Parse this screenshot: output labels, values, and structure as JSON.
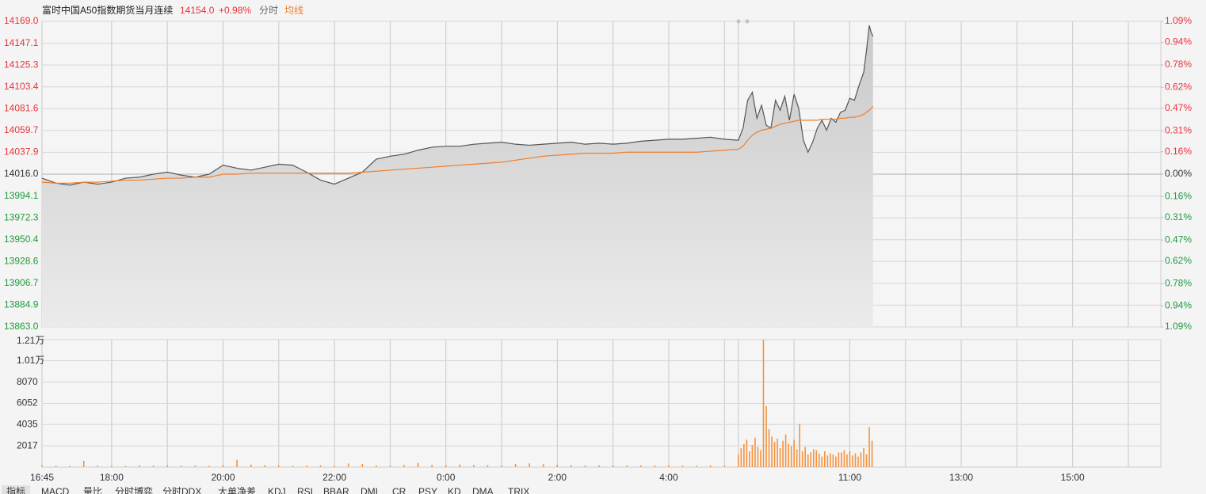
{
  "chart_data": [
    {
      "type": "line",
      "title": "富时中国A50指数期货当月连续",
      "last": "14154.0",
      "change": "+0.98%",
      "mode": "分时",
      "x": [
        0,
        15,
        30,
        45,
        60,
        75,
        90,
        105,
        120,
        135,
        150,
        165,
        180,
        195,
        210,
        225,
        240,
        255,
        270,
        285,
        300,
        315,
        330,
        345,
        360,
        375,
        390,
        405,
        420,
        435,
        450,
        465,
        480,
        495,
        510,
        525,
        540,
        555,
        570,
        585,
        600,
        615,
        630,
        645,
        660,
        675,
        690,
        705,
        720,
        735,
        750,
        755,
        760,
        765,
        770,
        775,
        780,
        785,
        790,
        795,
        800,
        805,
        810,
        815,
        820,
        825,
        830,
        835,
        840,
        845,
        850,
        855,
        860,
        865,
        870,
        875,
        880,
        885,
        888,
        891,
        893,
        895
      ],
      "series": [
        {
          "color": "#555555",
          "values": [
            14012,
            14007,
            14005,
            14008,
            14006,
            14008,
            14012,
            14013,
            14016,
            14018,
            14015,
            14013,
            14016,
            14025,
            14022,
            14020,
            14023,
            14026,
            14025,
            14018,
            14010,
            14006,
            14012,
            14018,
            14031,
            14034,
            14036,
            14040,
            14043,
            14044,
            14044,
            14046,
            14047,
            14048,
            14046,
            14045,
            14046,
            14047,
            14048,
            14046,
            14047,
            14046,
            14047,
            14049,
            14050,
            14051,
            14051,
            14052,
            14053,
            14051,
            14050,
            14062,
            14090,
            14098,
            14072,
            14085,
            14065,
            14062,
            14090,
            14080,
            14094,
            14070,
            14096,
            14082,
            14050,
            14038,
            14048,
            14062,
            14070,
            14060,
            14072,
            14068,
            14078,
            14080,
            14092,
            14090,
            14105,
            14118,
            14140,
            14165,
            14158,
            14154
          ]
        },
        {
          "name": "均线",
          "color": "#f07f2a",
          "values": [
            14008,
            14007,
            14007,
            14008,
            14008,
            14009,
            14010,
            14010,
            14011,
            14012,
            14012,
            14013,
            14013,
            14016,
            14016,
            14017,
            14017,
            14017,
            14017,
            14017,
            14017,
            14017,
            14017,
            14018,
            14019,
            14020,
            14021,
            14022,
            14023,
            14024,
            14025,
            14026,
            14027,
            14028,
            14030,
            14032,
            14034,
            14035,
            14036,
            14037,
            14037,
            14037,
            14038,
            14038,
            14038,
            14038,
            14038,
            14038,
            14039,
            14040,
            14041,
            14044,
            14050,
            14055,
            14058,
            14060,
            14061,
            14062,
            14064,
            14066,
            14067,
            14068,
            14069,
            14070,
            14070,
            14070,
            14070,
            14070,
            14071,
            14071,
            14071,
            14071,
            14072,
            14072,
            14073,
            14073,
            14074,
            14076,
            14078,
            14080,
            14082,
            14084
          ]
        }
      ],
      "xlim": [
        0,
        1205
      ],
      "ylim": [
        13863,
        14169
      ],
      "yticks": [
        {
          "value": 14169,
          "label": "14169.0"
        },
        14147.1,
        14125.3,
        14103.4,
        14081.6,
        14059.7,
        14037.9,
        {
          "value": 14016,
          "label": "14016.0"
        },
        13994.1,
        13972.3,
        13950.4,
        13928.6,
        13906.7,
        13884.9,
        {
          "value": 13863,
          "label": "13863.0"
        }
      ],
      "y2lim": [
        -1.09,
        1.09
      ],
      "y2ticks": [
        {
          "value": 1.09,
          "label": "1.09%"
        },
        {
          "value": 0.94,
          "label": "0.94%"
        },
        {
          "value": 0.78,
          "label": "0.78%"
        },
        {
          "value": 0.62,
          "label": "0.62%"
        },
        {
          "value": 0.47,
          "label": "0.47%"
        },
        {
          "value": 0.31,
          "label": "0.31%"
        },
        {
          "value": 0.16,
          "label": "0.16%"
        },
        {
          "value": 0,
          "label": "0.00%"
        },
        {
          "value": -0.16,
          "label": "0.16%"
        },
        {
          "value": -0.31,
          "label": "0.31%"
        },
        {
          "value": -0.47,
          "label": "0.47%"
        },
        {
          "value": -0.62,
          "label": "0.62%"
        },
        {
          "value": -0.78,
          "label": "0.78%"
        },
        {
          "value": -0.94,
          "label": "0.94%"
        },
        {
          "value": -1.09,
          "label": "1.09%"
        }
      ],
      "up_color": "#e8333a",
      "down_color": "#1f9a3c",
      "grid": true
    },
    {
      "type": "bar",
      "color": "#f5923e",
      "x": [
        0,
        15,
        30,
        45,
        60,
        75,
        90,
        105,
        120,
        135,
        150,
        165,
        180,
        195,
        210,
        225,
        240,
        255,
        270,
        285,
        300,
        315,
        330,
        345,
        360,
        375,
        390,
        405,
        420,
        435,
        450,
        465,
        480,
        495,
        510,
        525,
        540,
        555,
        570,
        585,
        600,
        615,
        630,
        645,
        660,
        675,
        690,
        705,
        720,
        735,
        750,
        753,
        756,
        759,
        762,
        765,
        768,
        771,
        774,
        777,
        780,
        783,
        786,
        789,
        792,
        795,
        798,
        801,
        804,
        807,
        810,
        813,
        816,
        819,
        822,
        825,
        828,
        831,
        834,
        837,
        840,
        843,
        846,
        849,
        852,
        855,
        858,
        861,
        864,
        867,
        870,
        873,
        876,
        879,
        882,
        885,
        888,
        891,
        894
      ],
      "values": [
        150,
        120,
        100,
        600,
        130,
        120,
        110,
        150,
        140,
        160,
        130,
        140,
        120,
        200,
        700,
        250,
        180,
        150,
        120,
        140,
        160,
        100,
        350,
        300,
        150,
        120,
        200,
        400,
        220,
        180,
        250,
        200,
        180,
        160,
        300,
        350,
        280,
        220,
        180,
        150,
        170,
        160,
        150,
        140,
        150,
        170,
        130,
        120,
        150,
        140,
        1200,
        1800,
        2200,
        2600,
        1500,
        2100,
        2800,
        1900,
        1600,
        12100,
        5800,
        3600,
        2900,
        2400,
        2700,
        1800,
        2500,
        3100,
        2200,
        2000,
        2600,
        1700,
        4100,
        1500,
        1900,
        1200,
        1400,
        1700,
        1600,
        1300,
        1000,
        1500,
        1100,
        1300,
        1200,
        1000,
        1400,
        1400,
        1600,
        1200,
        1500,
        1100,
        1300,
        1000,
        1400,
        1800,
        1200,
        3800,
        2500
      ],
      "xlim": [
        0,
        1205
      ],
      "ylim": [
        0,
        12100
      ],
      "yticks": [
        2017,
        4035,
        6052,
        8070,
        {
          "value": 10100,
          "label": "1.01万"
        },
        {
          "value": 12100,
          "label": "1.21万"
        }
      ],
      "xticks": [
        {
          "value": 0,
          "label": "16:45"
        },
        {
          "value": 75,
          "label": "18:00"
        },
        {
          "value": 195,
          "label": "20:00"
        },
        {
          "value": 315,
          "label": "22:00"
        },
        {
          "value": 435,
          "label": "0:00"
        },
        {
          "value": 555,
          "label": "2:00"
        },
        {
          "value": 675,
          "label": "4:00"
        },
        {
          "value": 870,
          "label": "11:00"
        },
        {
          "value": 990,
          "label": "13:00"
        },
        {
          "value": 1110,
          "label": "15:00"
        }
      ],
      "xgrid": [
        135,
        255,
        375,
        495,
        615,
        735,
        750,
        810,
        930,
        1050,
        1170
      ],
      "grid": true
    }
  ],
  "tabs": [
    "指标",
    "MACD",
    "量比",
    "分时博弈",
    "分时DDX",
    "大单净差",
    "KDJ",
    "RSI",
    "BBAR",
    "DMI",
    "CR",
    "PSY",
    "KD",
    "DMA",
    "TRIX"
  ]
}
